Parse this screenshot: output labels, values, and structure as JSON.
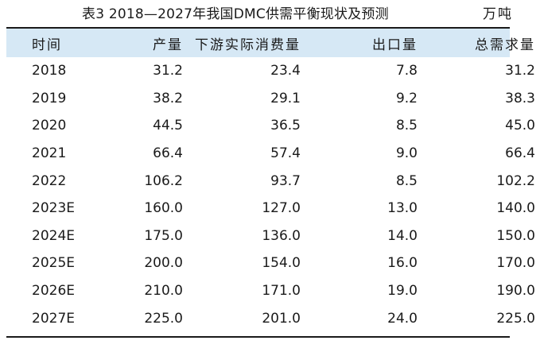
{
  "caption": {
    "title": "表3  2018—2027年我国DMC供需平衡现状及预测",
    "unit": "万吨"
  },
  "table": {
    "headers": [
      "时间",
      "产量",
      "下游实际消费量",
      "出口量",
      "总需求量"
    ],
    "rows": [
      [
        "2018",
        "31.2",
        "23.4",
        "7.8",
        "31.2"
      ],
      [
        "2019",
        "38.2",
        "29.1",
        "9.2",
        "38.3"
      ],
      [
        "2020",
        "44.5",
        "36.5",
        "8.5",
        "45.0"
      ],
      [
        "2021",
        "66.4",
        "57.4",
        "9.0",
        "66.4"
      ],
      [
        "2022",
        "106.2",
        "93.7",
        "8.5",
        "102.2"
      ],
      [
        "2023E",
        "160.0",
        "127.0",
        "13.0",
        "140.0"
      ],
      [
        "2024E",
        "175.0",
        "136.0",
        "14.0",
        "150.0"
      ],
      [
        "2025E",
        "200.0",
        "154.0",
        "16.0",
        "170.0"
      ],
      [
        "2026E",
        "210.0",
        "171.0",
        "19.0",
        "190.0"
      ],
      [
        "2027E",
        "225.0",
        "201.0",
        "24.0",
        "225.0"
      ]
    ]
  },
  "colors": {
    "header_band": "#d6e8f5",
    "text": "#1a1a1a"
  }
}
